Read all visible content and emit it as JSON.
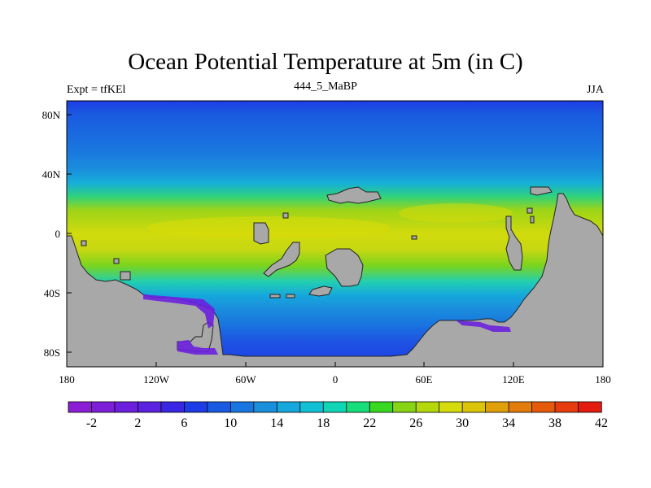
{
  "title": "Ocean Potential Temperature at 5m (in C)",
  "left_subtitle": "Expt = tfKEl",
  "center_subtitle": "444_5_MaBP",
  "right_subtitle": "JJA",
  "map": {
    "lon_range": [
      180,
      540
    ],
    "lat_range": [
      -90,
      90
    ],
    "land_color": "#a8a8a8",
    "x_ticks": [
      "180",
      "120W",
      "60W",
      "0",
      "60E",
      "120E",
      "180"
    ],
    "y_ticks": [
      "80N",
      "40N",
      "0",
      "40S",
      "80S"
    ],
    "temperature_bands": [
      {
        "lat_range": [
          80,
          90
        ],
        "value_c": 6
      },
      {
        "lat_range": [
          60,
          80
        ],
        "value_c": 10
      },
      {
        "lat_range": [
          48,
          60
        ],
        "value_c": 14
      },
      {
        "lat_range": [
          40,
          48
        ],
        "value_c": 18
      },
      {
        "lat_range": [
          30,
          40
        ],
        "value_c": 26
      },
      {
        "lat_range": [
          -10,
          30
        ],
        "value_c": 30
      },
      {
        "lat_range": [
          -30,
          -10
        ],
        "value_c": 26
      },
      {
        "lat_range": [
          -45,
          -30
        ],
        "value_c": 18
      },
      {
        "lat_range": [
          -60,
          -45
        ],
        "value_c": 10
      },
      {
        "lat_range": [
          -80,
          -60
        ],
        "value_c": 6
      }
    ]
  },
  "colorbar": {
    "colors": [
      "#8a1fd6",
      "#7d1ed9",
      "#6c20de",
      "#5b22e0",
      "#3a27e3",
      "#1e3ce6",
      "#1a5ae0",
      "#1975df",
      "#1a8fdc",
      "#16a8dc",
      "#12c0d6",
      "#10d6b6",
      "#18dd7c",
      "#38d820",
      "#86d414",
      "#b4d80c",
      "#d6dc0c",
      "#dcc40a",
      "#e0a00a",
      "#e27c0a",
      "#e65a0c",
      "#e63c0e",
      "#e41c10"
    ],
    "labels": [
      "-2",
      "2",
      "6",
      "10",
      "14",
      "18",
      "22",
      "26",
      "30",
      "34",
      "38",
      "42"
    ]
  }
}
